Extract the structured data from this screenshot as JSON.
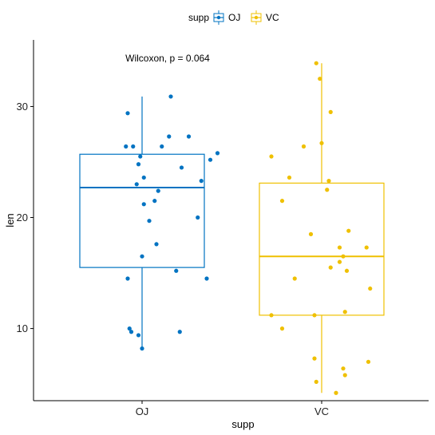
{
  "chart_data": {
    "type": "boxplot",
    "xlabel": "supp",
    "ylabel": "len",
    "ylim": [
      3.5,
      36
    ],
    "y_ticks": [
      10,
      20,
      30
    ],
    "categories": [
      "OJ",
      "VC"
    ],
    "legend": {
      "title": "supp",
      "position": "top",
      "entries": [
        "OJ",
        "VC"
      ]
    },
    "grid": false,
    "annotation": "Wilcoxon, p = 0.064",
    "colors": {
      "OJ": "#0073C2",
      "VC": "#EFC000"
    },
    "series": [
      {
        "name": "OJ",
        "box": {
          "min": 8.2,
          "q1": 15.5,
          "median": 22.7,
          "q3": 25.7,
          "max": 30.9
        },
        "points": [
          {
            "x": 0.16,
            "y": 30.9
          },
          {
            "x": -0.08,
            "y": 29.4
          },
          {
            "x": 0.26,
            "y": 27.3
          },
          {
            "x": 0.15,
            "y": 27.3
          },
          {
            "x": -0.09,
            "y": 26.4
          },
          {
            "x": -0.05,
            "y": 26.4
          },
          {
            "x": 0.11,
            "y": 26.4
          },
          {
            "x": 0.42,
            "y": 25.8
          },
          {
            "x": 0.38,
            "y": 25.2
          },
          {
            "x": -0.01,
            "y": 25.5
          },
          {
            "x": -0.02,
            "y": 24.8
          },
          {
            "x": 0.22,
            "y": 24.5
          },
          {
            "x": 0.01,
            "y": 23.6
          },
          {
            "x": -0.03,
            "y": 23.0
          },
          {
            "x": 0.33,
            "y": 23.3
          },
          {
            "x": 0.09,
            "y": 22.4
          },
          {
            "x": 0.07,
            "y": 21.5
          },
          {
            "x": 0.01,
            "y": 21.2
          },
          {
            "x": 0.31,
            "y": 20.0
          },
          {
            "x": 0.04,
            "y": 19.7
          },
          {
            "x": 0.08,
            "y": 17.6
          },
          {
            "x": 0.0,
            "y": 16.5
          },
          {
            "x": 0.19,
            "y": 15.2
          },
          {
            "x": -0.08,
            "y": 14.5
          },
          {
            "x": 0.36,
            "y": 14.5
          },
          {
            "x": -0.07,
            "y": 10.0
          },
          {
            "x": -0.06,
            "y": 9.7
          },
          {
            "x": 0.21,
            "y": 9.7
          },
          {
            "x": -0.02,
            "y": 9.4
          },
          {
            "x": 0.0,
            "y": 8.2
          }
        ]
      },
      {
        "name": "VC",
        "box": {
          "min": 4.2,
          "q1": 11.2,
          "median": 16.5,
          "q3": 23.1,
          "max": 33.9
        },
        "points": [
          {
            "x": -0.03,
            "y": 33.9
          },
          {
            "x": -0.01,
            "y": 32.5
          },
          {
            "x": 0.05,
            "y": 29.5
          },
          {
            "x": -0.1,
            "y": 26.4
          },
          {
            "x": 0.0,
            "y": 26.7
          },
          {
            "x": -0.28,
            "y": 25.5
          },
          {
            "x": -0.18,
            "y": 23.6
          },
          {
            "x": 0.04,
            "y": 23.3
          },
          {
            "x": 0.03,
            "y": 22.5
          },
          {
            "x": -0.22,
            "y": 21.5
          },
          {
            "x": -0.06,
            "y": 18.5
          },
          {
            "x": 0.15,
            "y": 18.8
          },
          {
            "x": 0.1,
            "y": 17.3
          },
          {
            "x": 0.25,
            "y": 17.3
          },
          {
            "x": 0.12,
            "y": 16.5
          },
          {
            "x": 0.1,
            "y": 16.0
          },
          {
            "x": 0.05,
            "y": 15.5
          },
          {
            "x": 0.14,
            "y": 15.2
          },
          {
            "x": -0.15,
            "y": 14.5
          },
          {
            "x": 0.27,
            "y": 13.6
          },
          {
            "x": -0.28,
            "y": 11.2
          },
          {
            "x": -0.04,
            "y": 11.2
          },
          {
            "x": 0.13,
            "y": 11.5
          },
          {
            "x": -0.22,
            "y": 10.0
          },
          {
            "x": -0.04,
            "y": 7.3
          },
          {
            "x": 0.26,
            "y": 7.0
          },
          {
            "x": 0.12,
            "y": 6.4
          },
          {
            "x": 0.13,
            "y": 5.8
          },
          {
            "x": -0.03,
            "y": 5.2
          },
          {
            "x": 0.08,
            "y": 4.2
          }
        ]
      }
    ]
  }
}
